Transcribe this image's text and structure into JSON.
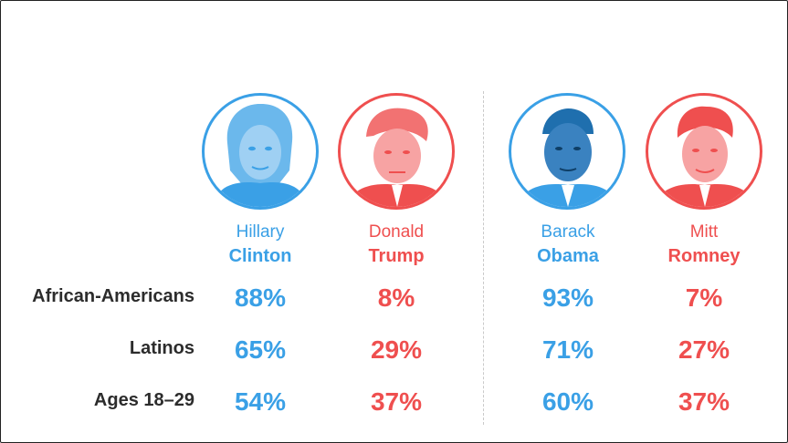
{
  "colors": {
    "dem": "#3aa0e6",
    "rep": "#ef4f4f",
    "label": "#2c2c2c"
  },
  "candidates": [
    {
      "first": "Hillary",
      "last": "Clinton",
      "party": "dem",
      "portrait_icon": "hillary-clinton-portrait"
    },
    {
      "first": "Donald",
      "last": "Trump",
      "party": "rep",
      "portrait_icon": "donald-trump-portrait"
    },
    {
      "first": "Barack",
      "last": "Obama",
      "party": "dem",
      "portrait_icon": "barack-obama-portrait"
    },
    {
      "first": "Mitt",
      "last": "Romney",
      "party": "rep",
      "portrait_icon": "mitt-romney-portrait"
    }
  ],
  "chart_data": {
    "type": "table",
    "columns": [
      "Hillary Clinton",
      "Donald Trump",
      "Barack Obama",
      "Mitt Romney"
    ],
    "rows": [
      {
        "label": "African-Americans",
        "values": [
          "88%",
          "8%",
          "93%",
          "7%"
        ]
      },
      {
        "label": "Latinos",
        "values": [
          "65%",
          "29%",
          "71%",
          "27%"
        ]
      },
      {
        "label": "Ages 18–29",
        "values": [
          "54%",
          "37%",
          "60%",
          "37%"
        ]
      }
    ]
  }
}
